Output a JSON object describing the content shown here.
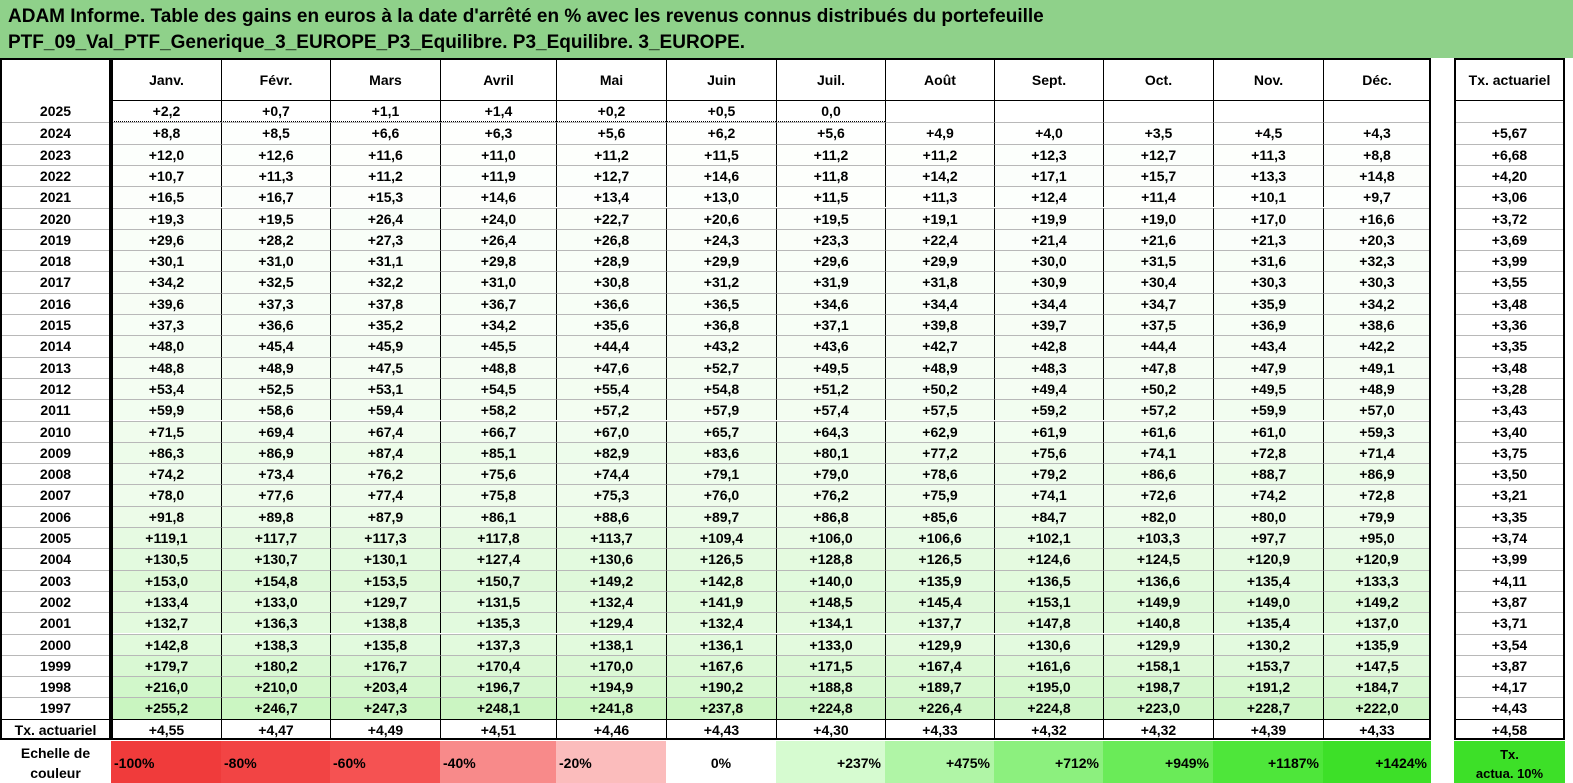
{
  "title": {
    "line1": "ADAM Informe. Table des gains en euros à la date d'arrêté en % avec les revenus connus distribués du portefeuille",
    "line2": "PTF_09_Val_PTF_Generique_3_EUROPE_P3_Equilibre. P3_Equilibre. 3_EUROPE."
  },
  "table": {
    "months": [
      "Janv.",
      "Févr.",
      "Mars",
      "Avril",
      "Mai",
      "Juin",
      "Juil.",
      "Août",
      "Sept.",
      "Oct.",
      "Nov.",
      "Déc."
    ],
    "rate_header": "Tx. actuariel",
    "rows": [
      {
        "year": "2025",
        "values": [
          "+2,2",
          "+0,7",
          "+1,1",
          "+1,4",
          "+0,2",
          "+0,5",
          "0,0",
          "",
          "",
          "",
          "",
          ""
        ],
        "rate": ""
      },
      {
        "year": "2024",
        "values": [
          "+8,8",
          "+8,5",
          "+6,6",
          "+6,3",
          "+5,6",
          "+6,2",
          "+5,6",
          "+4,9",
          "+4,0",
          "+3,5",
          "+4,5",
          "+4,3"
        ],
        "rate": "+5,67"
      },
      {
        "year": "2023",
        "values": [
          "+12,0",
          "+12,6",
          "+11,6",
          "+11,0",
          "+11,2",
          "+11,5",
          "+11,2",
          "+11,2",
          "+12,3",
          "+12,7",
          "+11,3",
          "+8,8"
        ],
        "rate": "+6,68"
      },
      {
        "year": "2022",
        "values": [
          "+10,7",
          "+11,3",
          "+11,2",
          "+11,9",
          "+12,7",
          "+14,6",
          "+11,8",
          "+14,2",
          "+17,1",
          "+15,7",
          "+13,3",
          "+14,8"
        ],
        "rate": "+4,20"
      },
      {
        "year": "2021",
        "values": [
          "+16,5",
          "+16,7",
          "+15,3",
          "+14,6",
          "+13,4",
          "+13,0",
          "+11,5",
          "+11,3",
          "+12,4",
          "+11,4",
          "+10,1",
          "+9,7"
        ],
        "rate": "+3,06"
      },
      {
        "year": "2020",
        "values": [
          "+19,3",
          "+19,5",
          "+26,4",
          "+24,0",
          "+22,7",
          "+20,6",
          "+19,5",
          "+19,1",
          "+19,9",
          "+19,0",
          "+17,0",
          "+16,6"
        ],
        "rate": "+3,72"
      },
      {
        "year": "2019",
        "values": [
          "+29,6",
          "+28,2",
          "+27,3",
          "+26,4",
          "+26,8",
          "+24,3",
          "+23,3",
          "+22,4",
          "+21,4",
          "+21,6",
          "+21,3",
          "+20,3"
        ],
        "rate": "+3,69"
      },
      {
        "year": "2018",
        "values": [
          "+30,1",
          "+31,0",
          "+31,1",
          "+29,8",
          "+28,9",
          "+29,9",
          "+29,6",
          "+29,9",
          "+30,0",
          "+31,5",
          "+31,6",
          "+32,3"
        ],
        "rate": "+3,99"
      },
      {
        "year": "2017",
        "values": [
          "+34,2",
          "+32,5",
          "+32,2",
          "+31,0",
          "+30,8",
          "+31,2",
          "+31,9",
          "+31,8",
          "+30,9",
          "+30,4",
          "+30,3",
          "+30,3"
        ],
        "rate": "+3,55"
      },
      {
        "year": "2016",
        "values": [
          "+39,6",
          "+37,3",
          "+37,8",
          "+36,7",
          "+36,6",
          "+36,5",
          "+34,6",
          "+34,4",
          "+34,4",
          "+34,7",
          "+35,9",
          "+34,2"
        ],
        "rate": "+3,48"
      },
      {
        "year": "2015",
        "values": [
          "+37,3",
          "+36,6",
          "+35,2",
          "+34,2",
          "+35,6",
          "+36,8",
          "+37,1",
          "+39,8",
          "+39,7",
          "+37,5",
          "+36,9",
          "+38,6"
        ],
        "rate": "+3,36"
      },
      {
        "year": "2014",
        "values": [
          "+48,0",
          "+45,4",
          "+45,9",
          "+45,5",
          "+44,4",
          "+43,2",
          "+43,6",
          "+42,7",
          "+42,8",
          "+44,4",
          "+43,4",
          "+42,2"
        ],
        "rate": "+3,35"
      },
      {
        "year": "2013",
        "values": [
          "+48,8",
          "+48,9",
          "+47,5",
          "+48,8",
          "+47,6",
          "+52,7",
          "+49,5",
          "+48,9",
          "+48,3",
          "+47,8",
          "+47,9",
          "+49,1"
        ],
        "rate": "+3,48"
      },
      {
        "year": "2012",
        "values": [
          "+53,4",
          "+52,5",
          "+53,1",
          "+54,5",
          "+55,4",
          "+54,8",
          "+51,2",
          "+50,2",
          "+49,4",
          "+50,2",
          "+49,5",
          "+48,9"
        ],
        "rate": "+3,28"
      },
      {
        "year": "2011",
        "values": [
          "+59,9",
          "+58,6",
          "+59,4",
          "+58,2",
          "+57,2",
          "+57,9",
          "+57,4",
          "+57,5",
          "+59,2",
          "+57,2",
          "+59,9",
          "+57,0"
        ],
        "rate": "+3,43"
      },
      {
        "year": "2010",
        "values": [
          "+71,5",
          "+69,4",
          "+67,4",
          "+66,7",
          "+67,0",
          "+65,7",
          "+64,3",
          "+62,9",
          "+61,9",
          "+61,6",
          "+61,0",
          "+59,3"
        ],
        "rate": "+3,40"
      },
      {
        "year": "2009",
        "values": [
          "+86,3",
          "+86,9",
          "+87,4",
          "+85,1",
          "+82,9",
          "+83,6",
          "+80,1",
          "+77,2",
          "+75,6",
          "+74,1",
          "+72,8",
          "+71,4"
        ],
        "rate": "+3,75"
      },
      {
        "year": "2008",
        "values": [
          "+74,2",
          "+73,4",
          "+76,2",
          "+75,6",
          "+74,4",
          "+79,1",
          "+79,0",
          "+78,6",
          "+79,2",
          "+86,6",
          "+88,7",
          "+86,9"
        ],
        "rate": "+3,50"
      },
      {
        "year": "2007",
        "values": [
          "+78,0",
          "+77,6",
          "+77,4",
          "+75,8",
          "+75,3",
          "+76,0",
          "+76,2",
          "+75,9",
          "+74,1",
          "+72,6",
          "+74,2",
          "+72,8"
        ],
        "rate": "+3,21"
      },
      {
        "year": "2006",
        "values": [
          "+91,8",
          "+89,8",
          "+87,9",
          "+86,1",
          "+88,6",
          "+89,7",
          "+86,8",
          "+85,6",
          "+84,7",
          "+82,0",
          "+80,0",
          "+79,9"
        ],
        "rate": "+3,35"
      },
      {
        "year": "2005",
        "values": [
          "+119,1",
          "+117,7",
          "+117,3",
          "+117,8",
          "+113,7",
          "+109,4",
          "+106,0",
          "+106,6",
          "+102,1",
          "+103,3",
          "+97,7",
          "+95,0"
        ],
        "rate": "+3,74"
      },
      {
        "year": "2004",
        "values": [
          "+130,5",
          "+130,7",
          "+130,1",
          "+127,4",
          "+130,6",
          "+126,5",
          "+128,8",
          "+126,5",
          "+124,6",
          "+124,5",
          "+120,9",
          "+120,9"
        ],
        "rate": "+3,99"
      },
      {
        "year": "2003",
        "values": [
          "+153,0",
          "+154,8",
          "+153,5",
          "+150,7",
          "+149,2",
          "+142,8",
          "+140,0",
          "+135,9",
          "+136,5",
          "+136,6",
          "+135,4",
          "+133,3"
        ],
        "rate": "+4,11"
      },
      {
        "year": "2002",
        "values": [
          "+133,4",
          "+133,0",
          "+129,7",
          "+131,5",
          "+132,4",
          "+141,9",
          "+148,5",
          "+145,4",
          "+153,1",
          "+149,9",
          "+149,0",
          "+149,2"
        ],
        "rate": "+3,87"
      },
      {
        "year": "2001",
        "values": [
          "+132,7",
          "+136,3",
          "+138,8",
          "+135,3",
          "+129,4",
          "+132,4",
          "+134,1",
          "+137,7",
          "+147,8",
          "+140,8",
          "+135,4",
          "+137,0"
        ],
        "rate": "+3,71"
      },
      {
        "year": "2000",
        "values": [
          "+142,8",
          "+138,3",
          "+135,8",
          "+137,3",
          "+138,1",
          "+136,1",
          "+133,0",
          "+129,9",
          "+130,6",
          "+129,9",
          "+130,2",
          "+135,9"
        ],
        "rate": "+3,54"
      },
      {
        "year": "1999",
        "values": [
          "+179,7",
          "+180,2",
          "+176,7",
          "+170,4",
          "+170,0",
          "+167,6",
          "+171,5",
          "+167,4",
          "+161,6",
          "+158,1",
          "+153,7",
          "+147,5"
        ],
        "rate": "+3,87"
      },
      {
        "year": "1998",
        "values": [
          "+216,0",
          "+210,0",
          "+203,4",
          "+196,7",
          "+194,9",
          "+190,2",
          "+188,8",
          "+189,7",
          "+195,0",
          "+198,7",
          "+191,2",
          "+184,7"
        ],
        "rate": "+4,17"
      },
      {
        "year": "1997",
        "values": [
          "+255,2",
          "+246,7",
          "+247,3",
          "+248,1",
          "+241,8",
          "+237,8",
          "+224,8",
          "+226,4",
          "+224,8",
          "+223,0",
          "+228,7",
          "+222,0"
        ],
        "rate": "+4,43"
      }
    ],
    "summary": {
      "label": "Tx. actuariel",
      "values": [
        "+4,55",
        "+4,47",
        "+4,49",
        "+4,51",
        "+4,46",
        "+4,43",
        "+4,30",
        "+4,33",
        "+4,32",
        "+4,32",
        "+4,39",
        "+4,33"
      ],
      "rate": "+4,58"
    }
  },
  "legend": {
    "label_line1": "Echelle de",
    "label_line2": "couleur",
    "steps": [
      {
        "label": "-100%",
        "color": "#f03b3b",
        "kind": "neg"
      },
      {
        "label": "-80%",
        "color": "#f24444",
        "kind": "neg"
      },
      {
        "label": "-60%",
        "color": "#f55252",
        "kind": "neg"
      },
      {
        "label": "-40%",
        "color": "#f88a8a",
        "kind": "neg"
      },
      {
        "label": "-20%",
        "color": "#fbbcbc",
        "kind": "neg"
      },
      {
        "label": "0%",
        "color": "#ffffff",
        "kind": "zero"
      },
      {
        "label": "+237%",
        "color": "#d6fbd0",
        "kind": "pos"
      },
      {
        "label": "+475%",
        "color": "#b0f5a6",
        "kind": "pos"
      },
      {
        "label": "+712%",
        "color": "#8cf07e",
        "kind": "pos"
      },
      {
        "label": "+949%",
        "color": "#6aeb58",
        "kind": "pos"
      },
      {
        "label": "+1187%",
        "color": "#4ee63a",
        "kind": "pos"
      },
      {
        "label": "+1424%",
        "color": "#3de028",
        "kind": "pos"
      }
    ],
    "tx_line1": "Tx.",
    "tx_line2": "actua. 10%",
    "tx_color": "#3de028"
  },
  "colors": {
    "title_bg": "#8fd18a",
    "positive_shade_max": "#c8f5bf"
  }
}
